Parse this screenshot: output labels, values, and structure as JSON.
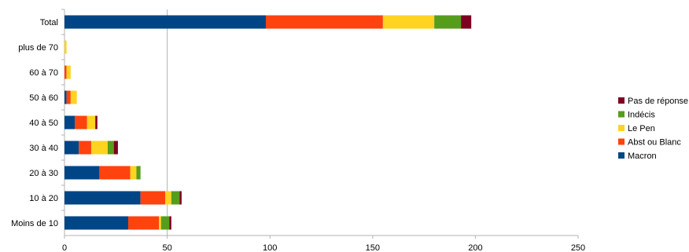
{
  "chart_data": {
    "type": "bar",
    "orientation": "horizontal",
    "stacked": true,
    "categories": [
      "Total",
      "plus de 70",
      "60 à 70",
      "50 à 60",
      "40 à 50",
      "30 à 40",
      "20 à 30",
      "10 à 20",
      "Moins de 10"
    ],
    "series": [
      {
        "name": "Macron",
        "color": "#004586",
        "values": [
          98,
          0,
          0,
          1,
          5,
          7,
          17,
          37,
          31
        ]
      },
      {
        "name": "Abst ou Blanc",
        "color": "#ff420e",
        "values": [
          57,
          0,
          1,
          2,
          6,
          6,
          15,
          12,
          15
        ]
      },
      {
        "name": "Le Pen",
        "color": "#ffd320",
        "values": [
          25,
          1,
          2,
          3,
          4,
          8,
          3,
          3,
          1
        ]
      },
      {
        "name": "Indécis",
        "color": "#579d1c",
        "values": [
          13,
          0,
          0,
          0,
          0,
          3,
          2,
          4,
          4
        ]
      },
      {
        "name": "Pas de réponse",
        "color": "#7e0021",
        "values": [
          5,
          0,
          0,
          0,
          1,
          2,
          0,
          1,
          1
        ]
      }
    ],
    "x_ticks": [
      "0",
      "50",
      "100",
      "150",
      "200",
      "250"
    ],
    "xlim": [
      0,
      250
    ],
    "legend_position": "right",
    "reference_line_x": 50
  }
}
